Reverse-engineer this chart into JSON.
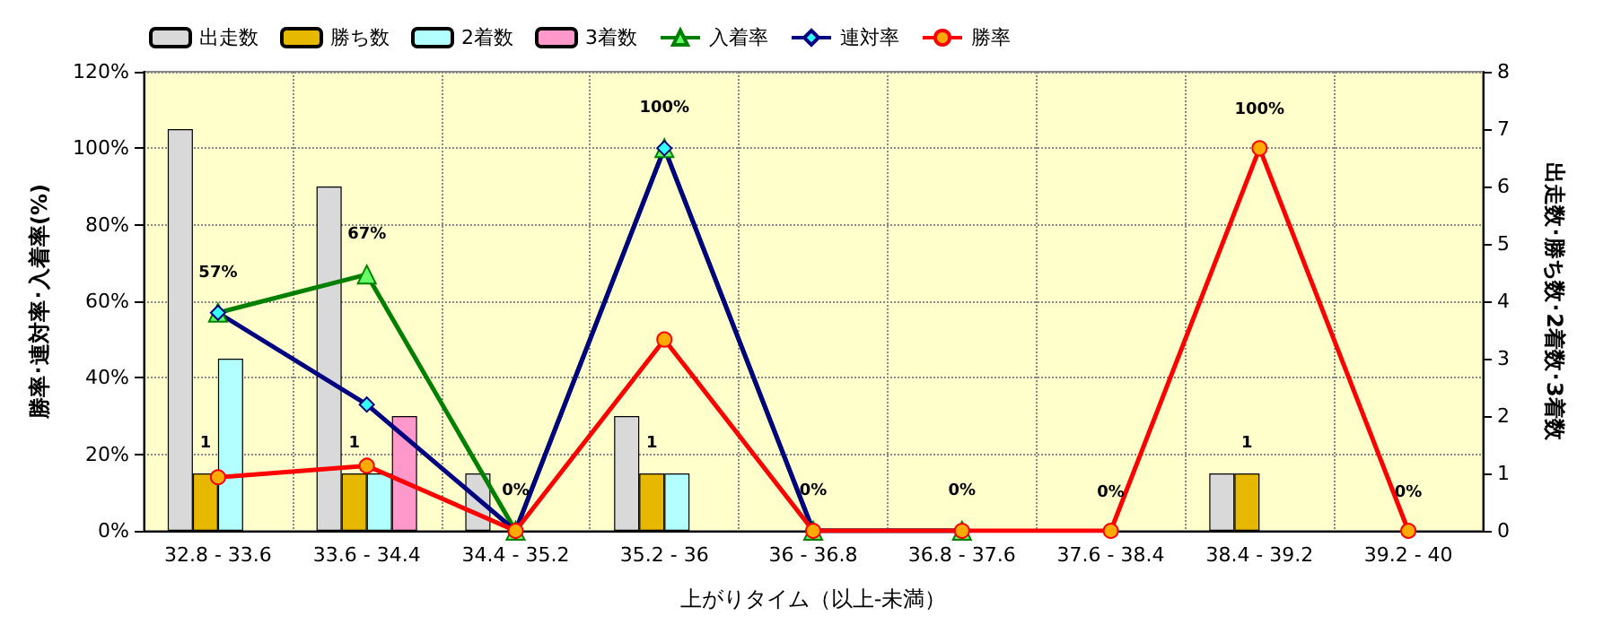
{
  "chart_data": {
    "type": "bar",
    "xlabel": "上がりタイム（以上-未満）",
    "ylabel": "勝率･連対率･入着率(%)",
    "y2label": "出走数･勝ち数･2着数･3着数",
    "categories": [
      "32.8 - 33.6",
      "33.6 - 34.4",
      "34.4 - 35.2",
      "35.2 - 36",
      "36 - 36.8",
      "36.8 - 37.6",
      "37.6 - 38.4",
      "38.4 - 39.2",
      "39.2 - 40"
    ],
    "ylim": [
      0,
      120
    ],
    "yticks": [
      {
        "value": 0,
        "label": "0%"
      },
      {
        "value": 20,
        "label": "20%"
      },
      {
        "value": 40,
        "label": "40%"
      },
      {
        "value": 60,
        "label": "60%"
      },
      {
        "value": 80,
        "label": "80%"
      },
      {
        "value": 100,
        "label": "100%"
      },
      {
        "value": 120,
        "label": "120%"
      }
    ],
    "y2lim": [
      0,
      8
    ],
    "y2ticks": [
      0,
      1,
      2,
      3,
      4,
      5,
      6,
      7,
      8
    ],
    "grid": true,
    "legend": "top left",
    "series": [
      {
        "name": "出走数",
        "axis": "y2",
        "color": "#d9d9d9",
        "values": [
          7,
          6,
          1,
          2,
          null,
          null,
          null,
          1,
          null
        ]
      },
      {
        "name": "勝ち数",
        "axis": "y2",
        "color": "#e6b800",
        "values": [
          1,
          1,
          null,
          1,
          null,
          null,
          null,
          1,
          null
        ],
        "value_labels": [
          "1",
          "1",
          null,
          "1",
          null,
          null,
          null,
          "1",
          null
        ]
      },
      {
        "name": "2着数",
        "axis": "y2",
        "color": "#b3ffff",
        "values": [
          3,
          1,
          null,
          1,
          null,
          null,
          null,
          null,
          null
        ]
      },
      {
        "name": "3着数",
        "axis": "y2",
        "color": "#ff99cc",
        "values": [
          null,
          2,
          null,
          null,
          null,
          null,
          null,
          null,
          null
        ]
      },
      {
        "name": "入着率",
        "type": "line",
        "marker": "triangle",
        "color": "#008000",
        "values": [
          57,
          67,
          0,
          100,
          0,
          0,
          null,
          null,
          null
        ],
        "value_labels": [
          "57%",
          "67%",
          "0%",
          "100%",
          "0%",
          "0%",
          null,
          null,
          null
        ]
      },
      {
        "name": "連対率",
        "type": "line",
        "marker": "diamond",
        "color": "#000080",
        "values": [
          57,
          33,
          0,
          100,
          0,
          0,
          null,
          null,
          null
        ]
      },
      {
        "name": "勝率",
        "type": "line",
        "marker": "circle",
        "color": "#ff0000",
        "values": [
          14,
          17,
          0,
          50,
          0,
          0,
          0,
          100,
          0
        ],
        "value_labels": [
          null,
          null,
          null,
          null,
          null,
          null,
          "0%",
          "100%",
          "0%"
        ]
      }
    ]
  }
}
